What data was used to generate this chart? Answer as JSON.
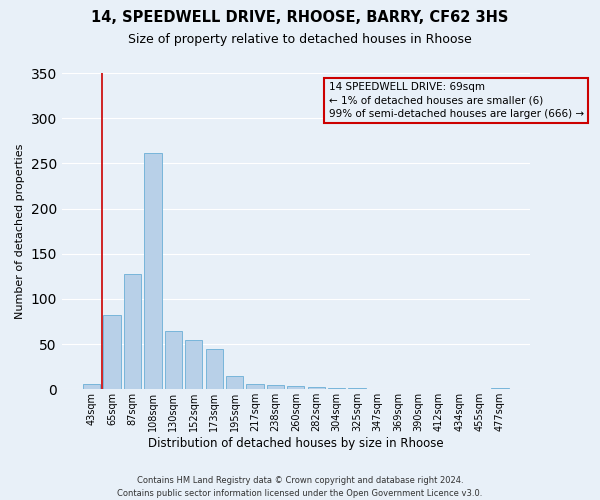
{
  "title": "14, SPEEDWELL DRIVE, RHOOSE, BARRY, CF62 3HS",
  "subtitle": "Size of property relative to detached houses in Rhoose",
  "xlabel": "Distribution of detached houses by size in Rhoose",
  "ylabel": "Number of detached properties",
  "bar_labels": [
    "43sqm",
    "65sqm",
    "87sqm",
    "108sqm",
    "130sqm",
    "152sqm",
    "173sqm",
    "195sqm",
    "217sqm",
    "238sqm",
    "260sqm",
    "282sqm",
    "304sqm",
    "325sqm",
    "347sqm",
    "369sqm",
    "390sqm",
    "412sqm",
    "434sqm",
    "455sqm",
    "477sqm"
  ],
  "bar_heights": [
    6,
    82,
    128,
    262,
    65,
    55,
    45,
    15,
    6,
    5,
    4,
    2,
    1,
    1,
    0,
    0,
    0,
    0,
    0,
    0,
    1
  ],
  "bar_color": "#b8d0e8",
  "bar_edge_color": "#6aaed6",
  "background_color": "#e8f0f8",
  "grid_color": "#ffffff",
  "red_line_x": 0.5,
  "annotation_text": "14 SPEEDWELL DRIVE: 69sqm\n← 1% of detached houses are smaller (6)\n99% of semi-detached houses are larger (666) →",
  "annotation_box_edge": "#cc0000",
  "ylim": [
    0,
    350
  ],
  "footer_line1": "Contains HM Land Registry data © Crown copyright and database right 2024.",
  "footer_line2": "Contains public sector information licensed under the Open Government Licence v3.0.",
  "title_fontsize": 10.5,
  "subtitle_fontsize": 9,
  "ylabel_fontsize": 8,
  "xlabel_fontsize": 8.5,
  "tick_fontsize": 7,
  "annotation_fontsize": 7.5,
  "footer_fontsize": 6
}
